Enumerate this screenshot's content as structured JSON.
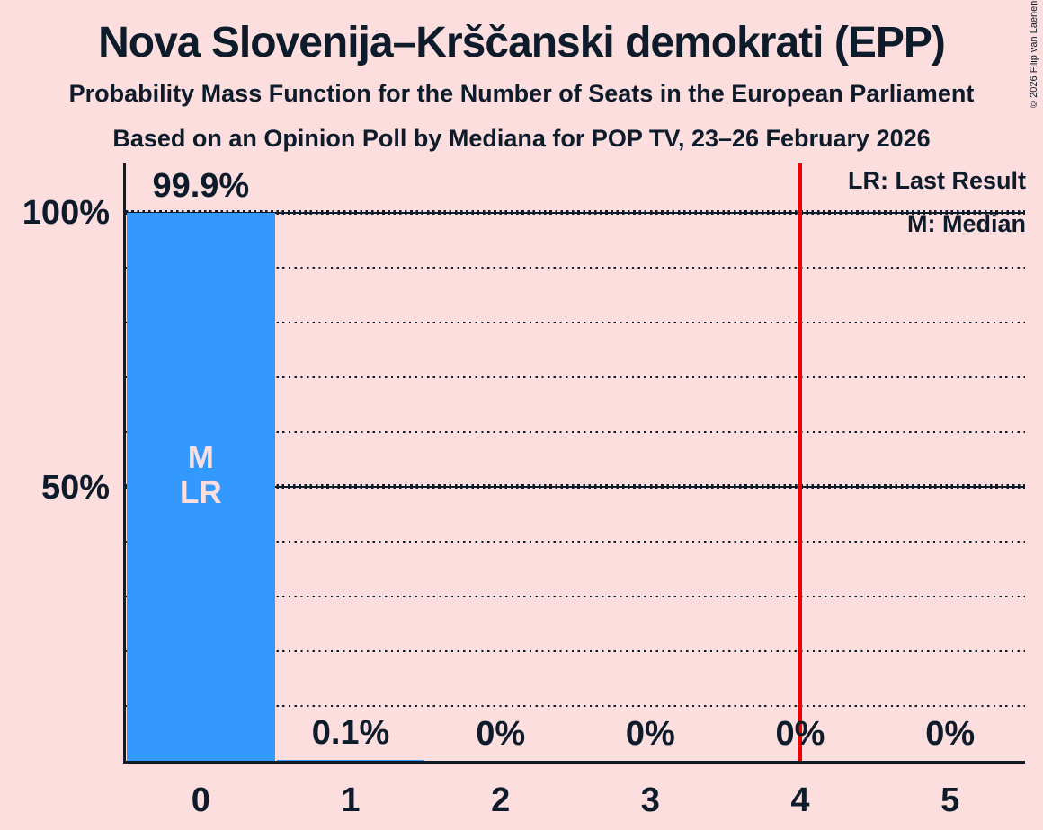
{
  "title": "Nova Slovenija–Krščanski demokrati (EPP)",
  "subtitle": "Probability Mass Function for the Number of Seats in the European Parliament",
  "source_line": "Based on an Opinion Poll by Mediana for POP TV, 23–26 February 2026",
  "copyright": "© 2026 Filip van Laenen",
  "legend": {
    "last_result": "LR: Last Result",
    "median": "M: Median"
  },
  "colors": {
    "background": "#fcdede",
    "bar": "#3399ff",
    "ink": "#0d1b2a",
    "last_result_line": "#ee0000"
  },
  "y_axis": {
    "labels": [
      {
        "text": "100%",
        "pct": 100
      },
      {
        "text": "50%",
        "pct": 50
      }
    ]
  },
  "chart_data": {
    "type": "bar",
    "title": "Probability Mass Function for the Number of Seats in the European Parliament",
    "categories": [
      "0",
      "1",
      "2",
      "3",
      "4",
      "5"
    ],
    "values": [
      99.9,
      0.1,
      0,
      0,
      0,
      0
    ],
    "value_labels": [
      "99.9%",
      "0.1%",
      "0%",
      "0%",
      "0%",
      "0%"
    ],
    "xlabel": "",
    "ylabel": "",
    "ylim": [
      0,
      100
    ],
    "y_tick_labels": [
      "100%",
      "50%"
    ],
    "grid": "dotted horizontal lines every 10%, solid at 50% and 100%",
    "legend_position": "top-right",
    "bar_annotations": [
      "M",
      "LR"
    ],
    "annotated_bar": "0",
    "last_result_line_x": 4.5
  }
}
